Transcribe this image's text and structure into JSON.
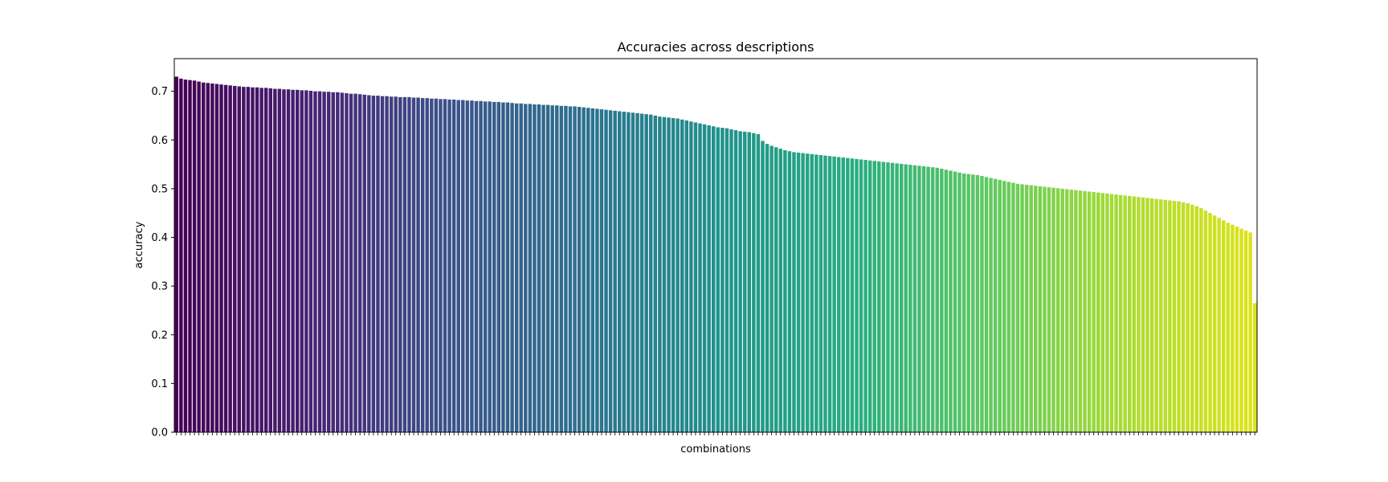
{
  "chart_data": {
    "type": "bar",
    "title": "Accuracies across descriptions",
    "xlabel": "combinations",
    "ylabel": "accuracy",
    "ylim": [
      0,
      0.767
    ],
    "yticks": [
      0.0,
      0.1,
      0.2,
      0.3,
      0.4,
      0.5,
      0.6,
      0.7
    ],
    "ytick_labels": [
      "0.0",
      "0.1",
      "0.2",
      "0.3",
      "0.4",
      "0.5",
      "0.6",
      "0.7"
    ],
    "x_tick_labels_shown": false,
    "grid": false,
    "legend": "none",
    "colormap": "viridis",
    "colormap_start": "#440154",
    "colormap_end": "#dde318",
    "values": [
      0.73,
      0.726,
      0.724,
      0.723,
      0.722,
      0.72,
      0.718,
      0.717,
      0.716,
      0.715,
      0.714,
      0.713,
      0.712,
      0.711,
      0.71,
      0.709,
      0.709,
      0.708,
      0.708,
      0.707,
      0.707,
      0.706,
      0.705,
      0.705,
      0.704,
      0.704,
      0.703,
      0.703,
      0.702,
      0.702,
      0.701,
      0.7,
      0.7,
      0.699,
      0.699,
      0.698,
      0.698,
      0.697,
      0.696,
      0.695,
      0.695,
      0.694,
      0.693,
      0.692,
      0.691,
      0.691,
      0.69,
      0.69,
      0.689,
      0.689,
      0.688,
      0.688,
      0.688,
      0.687,
      0.687,
      0.686,
      0.686,
      0.685,
      0.685,
      0.684,
      0.684,
      0.683,
      0.683,
      0.682,
      0.682,
      0.681,
      0.681,
      0.68,
      0.68,
      0.679,
      0.679,
      0.678,
      0.678,
      0.677,
      0.677,
      0.676,
      0.675,
      0.675,
      0.674,
      0.674,
      0.673,
      0.673,
      0.672,
      0.672,
      0.671,
      0.671,
      0.67,
      0.67,
      0.669,
      0.669,
      0.668,
      0.667,
      0.666,
      0.665,
      0.664,
      0.663,
      0.662,
      0.661,
      0.66,
      0.659,
      0.658,
      0.657,
      0.656,
      0.655,
      0.654,
      0.653,
      0.652,
      0.65,
      0.648,
      0.647,
      0.646,
      0.645,
      0.644,
      0.642,
      0.64,
      0.638,
      0.636,
      0.634,
      0.632,
      0.63,
      0.628,
      0.626,
      0.625,
      0.624,
      0.622,
      0.62,
      0.618,
      0.617,
      0.616,
      0.614,
      0.612,
      0.598,
      0.592,
      0.588,
      0.585,
      0.582,
      0.579,
      0.577,
      0.575,
      0.574,
      0.573,
      0.572,
      0.571,
      0.57,
      0.569,
      0.568,
      0.567,
      0.566,
      0.565,
      0.564,
      0.563,
      0.562,
      0.561,
      0.56,
      0.559,
      0.558,
      0.557,
      0.556,
      0.555,
      0.554,
      0.553,
      0.552,
      0.551,
      0.55,
      0.549,
      0.548,
      0.547,
      0.546,
      0.545,
      0.544,
      0.543,
      0.541,
      0.539,
      0.537,
      0.535,
      0.533,
      0.531,
      0.53,
      0.529,
      0.528,
      0.526,
      0.524,
      0.522,
      0.52,
      0.518,
      0.516,
      0.514,
      0.512,
      0.51,
      0.509,
      0.508,
      0.507,
      0.506,
      0.505,
      0.504,
      0.503,
      0.502,
      0.501,
      0.5,
      0.499,
      0.498,
      0.497,
      0.496,
      0.495,
      0.494,
      0.493,
      0.492,
      0.491,
      0.49,
      0.489,
      0.488,
      0.487,
      0.486,
      0.485,
      0.484,
      0.483,
      0.482,
      0.481,
      0.48,
      0.479,
      0.478,
      0.477,
      0.476,
      0.475,
      0.474,
      0.472,
      0.47,
      0.467,
      0.464,
      0.46,
      0.455,
      0.45,
      0.445,
      0.44,
      0.435,
      0.43,
      0.426,
      0.422,
      0.418,
      0.414,
      0.41,
      0.265
    ]
  }
}
